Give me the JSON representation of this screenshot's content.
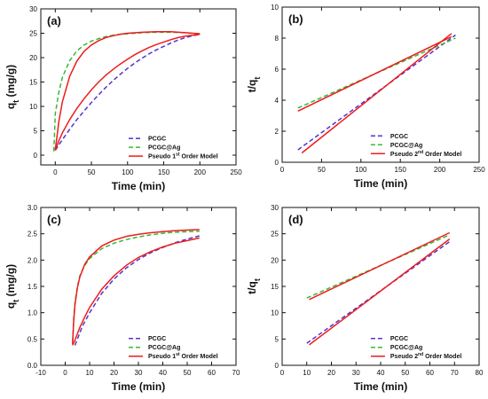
{
  "colors": {
    "PCGC": "#5533cc",
    "PCGC@Ag": "#33bb33",
    "model": "#ee1c1c"
  },
  "chart_data": [
    {
      "type": "line",
      "panel_label": "(a)",
      "xlabel": "Time (min)",
      "ylabel": "q_t (mg/g)",
      "xlim": [
        -20,
        250
      ],
      "ylim": [
        -2,
        30
      ],
      "xticks": [
        0,
        50,
        100,
        150,
        200,
        250
      ],
      "yticks": [
        0,
        5,
        10,
        15,
        20,
        25,
        30
      ],
      "legend": {
        "position": "lower-right",
        "entries": [
          "PCGC",
          "PCGC@Ag",
          "Pseudo 1st Order Model"
        ]
      },
      "series": [
        {
          "name": "PCGC",
          "style": "dashed",
          "color": "#5533cc",
          "x": [
            0,
            10,
            20,
            30,
            40,
            50,
            60,
            70,
            80,
            90,
            100,
            110,
            120,
            130,
            140,
            150,
            160,
            170,
            180,
            190,
            200
          ],
          "y": [
            1.0,
            3.2,
            5.3,
            7.3,
            9.1,
            10.8,
            12.4,
            13.9,
            15.3,
            16.6,
            17.8,
            18.9,
            19.9,
            20.8,
            21.6,
            22.3,
            23.0,
            23.6,
            24.1,
            24.5,
            24.8
          ]
        },
        {
          "name": "PCGC@Ag",
          "style": "dashed",
          "color": "#33bb33",
          "x": [
            -2,
            0,
            5,
            10,
            20,
            30,
            40,
            50,
            60,
            70,
            80,
            90,
            100,
            120,
            140,
            160,
            180,
            200
          ],
          "y": [
            0.8,
            8.5,
            13.0,
            16.0,
            19.4,
            21.4,
            22.6,
            23.4,
            23.9,
            24.3,
            24.6,
            24.8,
            24.9,
            25.1,
            25.2,
            25.2,
            25.1,
            24.9
          ]
        },
        {
          "name": "Pseudo 1st Order Model",
          "style": "solid",
          "color": "#ee1c1c",
          "x": [
            0,
            5,
            10,
            20,
            30,
            40,
            50,
            60,
            70,
            80,
            90,
            100,
            110,
            120,
            130,
            140,
            150,
            160,
            170,
            180,
            190,
            200
          ],
          "y": [
            1.0,
            3.0,
            4.6,
            7.3,
            9.6,
            11.6,
            13.4,
            15.0,
            16.4,
            17.6,
            18.7,
            19.7,
            20.6,
            21.4,
            22.1,
            22.7,
            23.2,
            23.7,
            24.1,
            24.4,
            24.6,
            24.8
          ]
        },
        {
          "name": "Pseudo 1st Order Model (PCGC@Ag)",
          "style": "solid",
          "color": "#ee1c1c",
          "x": [
            0,
            5,
            10,
            20,
            30,
            40,
            50,
            60,
            70,
            80,
            90,
            100,
            120,
            140,
            160,
            180,
            200
          ],
          "y": [
            1.0,
            7.0,
            11.0,
            16.2,
            19.3,
            21.3,
            22.6,
            23.5,
            24.1,
            24.5,
            24.8,
            25.0,
            25.2,
            25.3,
            25.3,
            25.1,
            24.9
          ]
        }
      ]
    },
    {
      "type": "line",
      "panel_label": "(b)",
      "xlabel": "Time (min)",
      "ylabel": "t/q_t",
      "xlim": [
        0,
        250
      ],
      "ylim": [
        0,
        10
      ],
      "xticks": [
        0,
        50,
        100,
        150,
        200,
        250
      ],
      "yticks": [
        0,
        2,
        4,
        6,
        8,
        10
      ],
      "legend": {
        "position": "lower-right",
        "entries": [
          "PCGC",
          "PCGC@Ag",
          "Pseudo 2nd Order Model"
        ]
      },
      "series": [
        {
          "name": "PCGC",
          "style": "dashed",
          "color": "#5533cc",
          "x": [
            20,
            220
          ],
          "y": [
            0.8,
            8.2
          ]
        },
        {
          "name": "PCGC@Ag",
          "style": "dashed",
          "color": "#33bb33",
          "x": [
            20,
            220
          ],
          "y": [
            3.5,
            8.0
          ]
        },
        {
          "name": "Pseudo 2nd Order Model",
          "style": "solid",
          "color": "#ee1c1c",
          "x": [
            25,
            215
          ],
          "y": [
            0.6,
            8.3
          ]
        },
        {
          "name": "Pseudo 2nd Order Model (PCGC@Ag)",
          "style": "solid",
          "color": "#ee1c1c",
          "x": [
            20,
            215
          ],
          "y": [
            3.3,
            8.1
          ]
        }
      ]
    },
    {
      "type": "line",
      "panel_label": "(c)",
      "xlabel": "Time (min)",
      "ylabel": "q_t (mg/g)",
      "xlim": [
        -10,
        70
      ],
      "ylim": [
        0,
        3.0
      ],
      "xticks": [
        -10,
        0,
        10,
        20,
        30,
        40,
        50,
        60,
        70
      ],
      "yticks": [
        0.0,
        0.5,
        1.0,
        1.5,
        2.0,
        2.5,
        3.0
      ],
      "legend": {
        "position": "lower-right",
        "entries": [
          "PCGC",
          "PCGC@Ag",
          "Pseudo 1st Order Model"
        ]
      },
      "series": [
        {
          "name": "PCGC",
          "style": "dashed",
          "color": "#5533cc",
          "x": [
            4,
            5,
            7,
            10,
            15,
            20,
            25,
            30,
            35,
            40,
            45,
            50,
            55
          ],
          "y": [
            0.38,
            0.5,
            0.74,
            1.0,
            1.37,
            1.64,
            1.85,
            2.01,
            2.14,
            2.24,
            2.33,
            2.4,
            2.46
          ]
        },
        {
          "name": "PCGC@Ag",
          "style": "dashed",
          "color": "#33bb33",
          "x": [
            3,
            3.5,
            4,
            5,
            6,
            8,
            10,
            15,
            20,
            25,
            30,
            35,
            40,
            45,
            50,
            55
          ],
          "y": [
            0.45,
            0.9,
            1.2,
            1.5,
            1.7,
            1.9,
            2.03,
            2.22,
            2.32,
            2.39,
            2.44,
            2.48,
            2.51,
            2.53,
            2.54,
            2.55
          ]
        },
        {
          "name": "Pseudo 1st Order Model",
          "style": "solid",
          "color": "#ee1c1c",
          "x": [
            3,
            4,
            6,
            8,
            10,
            15,
            20,
            25,
            30,
            35,
            40,
            45,
            50,
            55
          ],
          "y": [
            0.38,
            0.48,
            0.72,
            0.92,
            1.1,
            1.45,
            1.7,
            1.9,
            2.05,
            2.16,
            2.25,
            2.32,
            2.37,
            2.42
          ]
        },
        {
          "name": "Pseudo 1st Order Model (PCGC@Ag)",
          "style": "solid",
          "color": "#ee1c1c",
          "x": [
            3,
            3.5,
            4,
            5,
            6,
            8,
            10,
            15,
            20,
            25,
            30,
            35,
            40,
            45,
            50,
            55
          ],
          "y": [
            0.4,
            0.85,
            1.15,
            1.48,
            1.68,
            1.92,
            2.06,
            2.27,
            2.38,
            2.45,
            2.49,
            2.52,
            2.54,
            2.56,
            2.57,
            2.58
          ]
        }
      ]
    },
    {
      "type": "line",
      "panel_label": "(d)",
      "xlabel": "Time (min)",
      "ylabel": "t/q_t",
      "xlim": [
        0,
        80
      ],
      "ylim": [
        0,
        30
      ],
      "xticks": [
        0,
        10,
        20,
        30,
        40,
        50,
        60,
        70,
        80
      ],
      "yticks": [
        0,
        5,
        10,
        15,
        20,
        25,
        30
      ],
      "legend": {
        "position": "lower-right",
        "entries": [
          "PCGC",
          "PCGC@Ag",
          "Pseudo 2nd Order Model"
        ]
      },
      "series": [
        {
          "name": "PCGC",
          "style": "dashed",
          "color": "#5533cc",
          "x": [
            10,
            68
          ],
          "y": [
            4.2,
            23.5
          ]
        },
        {
          "name": "PCGC@Ag",
          "style": "dashed",
          "color": "#33bb33",
          "x": [
            10,
            68
          ],
          "y": [
            12.8,
            24.8
          ]
        },
        {
          "name": "Pseudo 2nd Order Model",
          "style": "solid",
          "color": "#ee1c1c",
          "x": [
            11,
            68
          ],
          "y": [
            3.9,
            24.0
          ]
        },
        {
          "name": "Pseudo 2nd Order Model (PCGC@Ag)",
          "style": "solid",
          "color": "#ee1c1c",
          "x": [
            11,
            68
          ],
          "y": [
            12.5,
            25.2
          ]
        }
      ]
    }
  ]
}
